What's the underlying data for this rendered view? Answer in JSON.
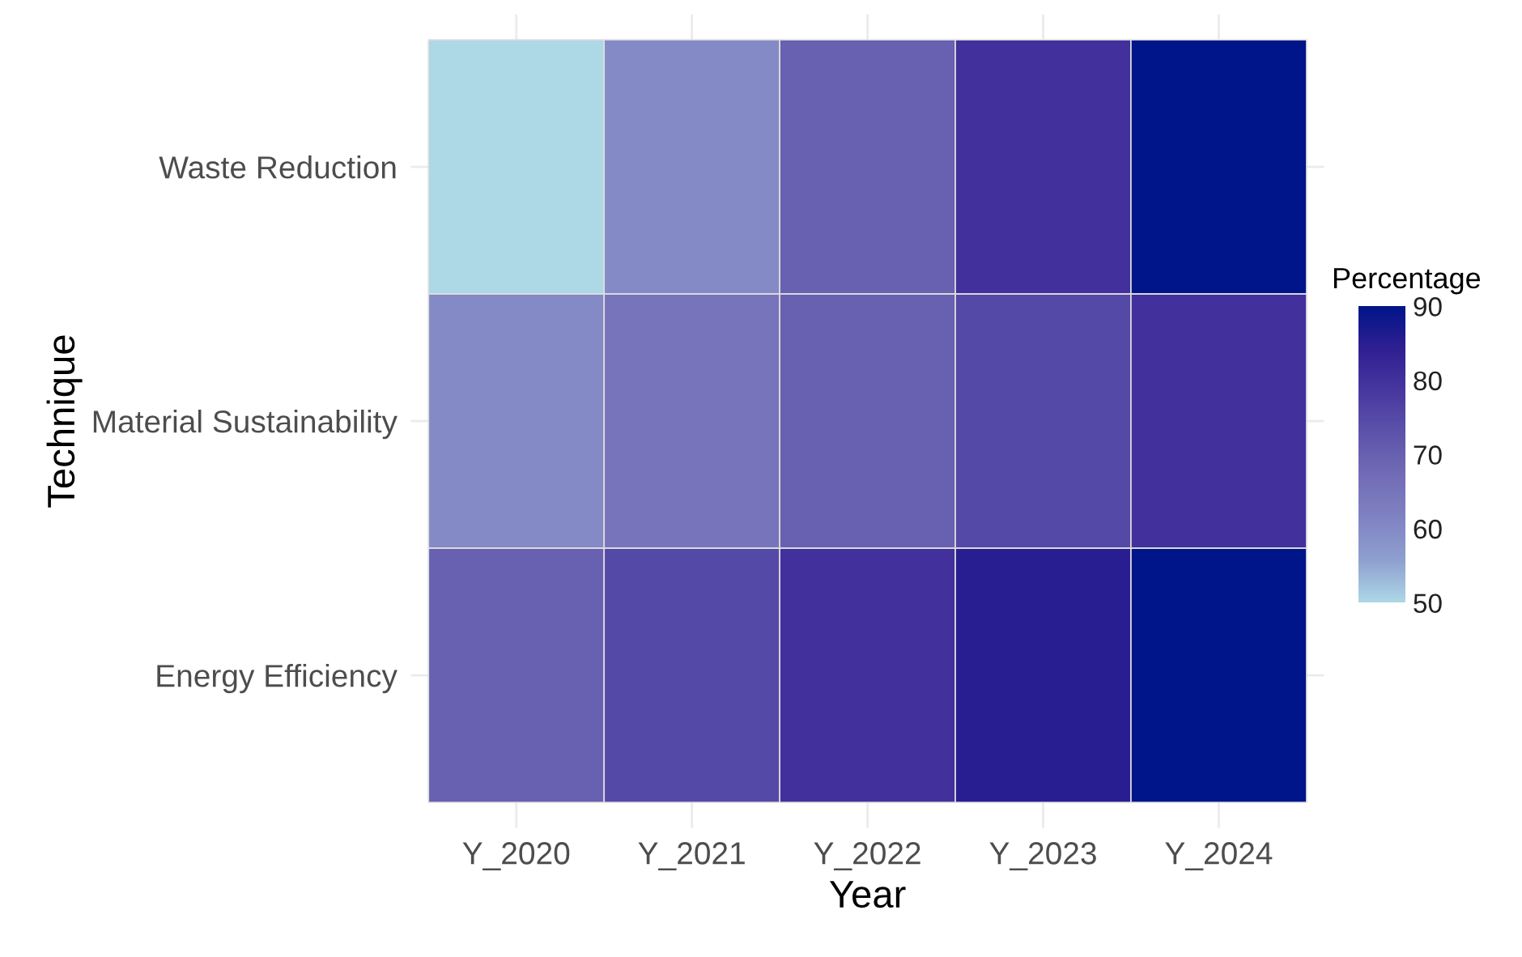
{
  "chart_data": {
    "type": "heatmap",
    "xlabel": "Year",
    "ylabel": "Technique",
    "clabel": "Percentage",
    "categories": [
      "Y_2020",
      "Y_2021",
      "Y_2022",
      "Y_2023",
      "Y_2024"
    ],
    "y_categories": [
      "Waste Reduction",
      "Material Sustainability",
      "Energy Efficiency"
    ],
    "cells": [
      [
        50,
        60,
        70,
        80,
        90
      ],
      [
        60,
        65,
        70,
        75,
        80
      ],
      [
        70,
        75,
        80,
        85,
        90
      ]
    ],
    "clim": [
      50,
      90
    ],
    "cticks": [
      50,
      60,
      70,
      80,
      90
    ],
    "grid": true
  }
}
